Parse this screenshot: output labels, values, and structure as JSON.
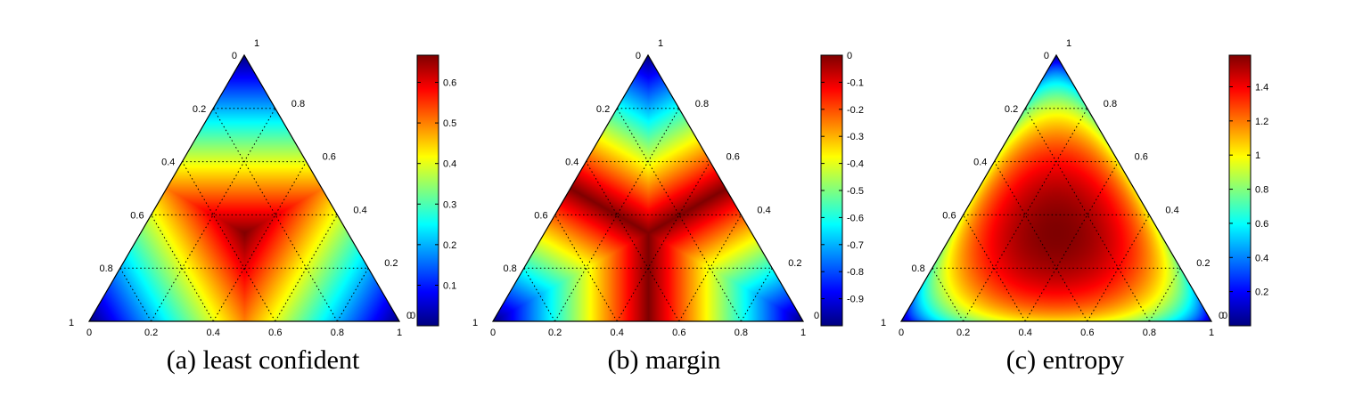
{
  "colors": {
    "jet": [
      "#00007f",
      "#0000ff",
      "#007fff",
      "#00ffff",
      "#7fff7f",
      "#ffff00",
      "#ff7f00",
      "#ff0000",
      "#7f0000"
    ],
    "edge": "#000000",
    "grid": "#000000"
  },
  "chart_data": [
    {
      "type": "heatmap",
      "subtype": "ternary",
      "caption": "(a) least confident",
      "metric": "least_confident",
      "grid": true,
      "axes": {
        "bottom_ticks": [
          "0",
          "0.2",
          "0.4",
          "0.6",
          "0.8",
          "1"
        ],
        "left_ticks": [
          "1",
          "0.8",
          "0.6",
          "0.4",
          "0.2",
          "0"
        ],
        "right_ticks": [
          "1",
          "0.8",
          "0.6",
          "0.4",
          "0.2",
          "0"
        ]
      },
      "colorbar": {
        "range": [
          0,
          0.667
        ],
        "tick_values": [
          0.1,
          0.2,
          0.3,
          0.4,
          0.5,
          0.6
        ],
        "tick_labels": [
          "0.1",
          "0.2",
          "0.3",
          "0.4",
          "0.5",
          "0.6"
        ],
        "bottom_label": "0"
      }
    },
    {
      "type": "heatmap",
      "subtype": "ternary",
      "caption": "(b) margin",
      "metric": "margin",
      "grid": true,
      "axes": {
        "bottom_ticks": [
          "0",
          "0.2",
          "0.4",
          "0.6",
          "0.8",
          "1"
        ],
        "left_ticks": [
          "1",
          "0.8",
          "0.6",
          "0.4",
          "0.2",
          "0"
        ],
        "right_ticks": [
          "1",
          "0.8",
          "0.6",
          "0.4",
          "0.2",
          "0"
        ]
      },
      "colorbar": {
        "range": [
          -1,
          0
        ],
        "tick_values": [
          0,
          -0.1,
          -0.2,
          -0.3,
          -0.4,
          -0.5,
          -0.6,
          -0.7,
          -0.8,
          -0.9
        ],
        "tick_labels": [
          "0",
          "-0.1",
          "-0.2",
          "-0.3",
          "-0.4",
          "-0.5",
          "-0.6",
          "-0.7",
          "-0.8",
          "-0.9"
        ],
        "bottom_label": ""
      }
    },
    {
      "type": "heatmap",
      "subtype": "ternary",
      "caption": "(c) entropy",
      "metric": "entropy",
      "grid": true,
      "axes": {
        "bottom_ticks": [
          "0",
          "0.2",
          "0.4",
          "0.6",
          "0.8",
          "1"
        ],
        "left_ticks": [
          "1",
          "0.8",
          "0.6",
          "0.4",
          "0.2",
          "0"
        ],
        "right_ticks": [
          "1",
          "0.8",
          "0.6",
          "0.4",
          "0.2",
          "0"
        ]
      },
      "colorbar": {
        "range": [
          0,
          1.585
        ],
        "tick_values": [
          0.2,
          0.4,
          0.6,
          0.8,
          1,
          1.2,
          1.4
        ],
        "tick_labels": [
          "0.2",
          "0.4",
          "0.6",
          "0.8",
          "1",
          "1.2",
          "1.4"
        ],
        "bottom_label": "0"
      }
    }
  ]
}
